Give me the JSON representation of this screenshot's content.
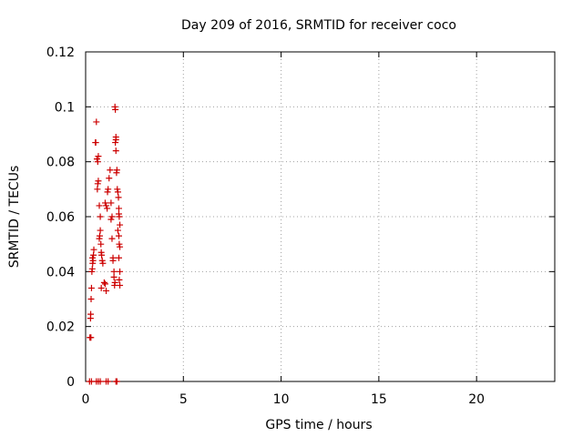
{
  "chart_data": {
    "type": "scatter",
    "title": "Day 209 of 2016, SRMTID for receiver coco",
    "xlabel": "GPS time / hours",
    "ylabel": "SRMTID / TECUs",
    "xlim": [
      0,
      24
    ],
    "ylim": [
      0,
      0.12
    ],
    "xticks": [
      0,
      5,
      10,
      15,
      20
    ],
    "yticks": [
      0,
      0.02,
      0.04,
      0.06,
      0.08,
      0.1,
      0.12
    ],
    "xtick_labels": [
      "0",
      "5",
      "10",
      "15",
      "20"
    ],
    "ytick_labels": [
      "0",
      "0.02",
      "0.04",
      "0.06",
      "0.08",
      "0.1",
      "0.12"
    ],
    "grid": true,
    "marker": "+",
    "marker_color": "#cc0000",
    "series": [
      {
        "name": "SRMTID",
        "points": [
          [
            0.2,
            0.0
          ],
          [
            0.3,
            0.0
          ],
          [
            0.55,
            0.0
          ],
          [
            0.65,
            0.0
          ],
          [
            0.75,
            0.0
          ],
          [
            1.05,
            0.0
          ],
          [
            1.15,
            0.0
          ],
          [
            1.55,
            0.0
          ],
          [
            1.6,
            0.0
          ],
          [
            0.22,
            0.016
          ],
          [
            0.27,
            0.016
          ],
          [
            0.25,
            0.023
          ],
          [
            0.26,
            0.0245
          ],
          [
            0.28,
            0.03
          ],
          [
            0.3,
            0.034
          ],
          [
            0.32,
            0.04
          ],
          [
            0.34,
            0.041
          ],
          [
            0.36,
            0.043
          ],
          [
            0.38,
            0.044
          ],
          [
            0.35,
            0.045
          ],
          [
            0.4,
            0.046
          ],
          [
            0.42,
            0.048
          ],
          [
            0.5,
            0.087
          ],
          [
            0.52,
            0.087
          ],
          [
            0.55,
            0.0945
          ],
          [
            0.58,
            0.081
          ],
          [
            0.62,
            0.08
          ],
          [
            0.65,
            0.082
          ],
          [
            0.6,
            0.07
          ],
          [
            0.62,
            0.072
          ],
          [
            0.65,
            0.073
          ],
          [
            0.7,
            0.064
          ],
          [
            0.75,
            0.06
          ],
          [
            0.7,
            0.052
          ],
          [
            0.72,
            0.053
          ],
          [
            0.75,
            0.055
          ],
          [
            0.78,
            0.05
          ],
          [
            0.8,
            0.047
          ],
          [
            0.82,
            0.046
          ],
          [
            0.85,
            0.044
          ],
          [
            0.88,
            0.043
          ],
          [
            0.8,
            0.034
          ],
          [
            0.95,
            0.036
          ],
          [
            1.0,
            0.0355
          ],
          [
            1.05,
            0.033
          ],
          [
            1.0,
            0.065
          ],
          [
            1.05,
            0.064
          ],
          [
            1.1,
            0.063
          ],
          [
            1.12,
            0.069
          ],
          [
            1.15,
            0.07
          ],
          [
            1.2,
            0.074
          ],
          [
            1.25,
            0.077
          ],
          [
            1.3,
            0.065
          ],
          [
            1.3,
            0.059
          ],
          [
            1.35,
            0.06
          ],
          [
            1.35,
            0.052
          ],
          [
            1.4,
            0.045
          ],
          [
            1.4,
            0.044
          ],
          [
            1.45,
            0.04
          ],
          [
            1.45,
            0.038
          ],
          [
            1.5,
            0.036
          ],
          [
            1.48,
            0.035
          ],
          [
            1.5,
            0.1
          ],
          [
            1.52,
            0.099
          ],
          [
            1.55,
            0.089
          ],
          [
            1.55,
            0.088
          ],
          [
            1.52,
            0.087
          ],
          [
            1.55,
            0.084
          ],
          [
            1.58,
            0.076
          ],
          [
            1.6,
            0.077
          ],
          [
            1.62,
            0.07
          ],
          [
            1.65,
            0.069
          ],
          [
            1.68,
            0.067
          ],
          [
            1.7,
            0.063
          ],
          [
            1.7,
            0.061
          ],
          [
            1.72,
            0.06
          ],
          [
            1.75,
            0.057
          ],
          [
            1.65,
            0.055
          ],
          [
            1.7,
            0.053
          ],
          [
            1.72,
            0.05
          ],
          [
            1.75,
            0.049
          ],
          [
            1.7,
            0.045
          ],
          [
            1.75,
            0.04
          ],
          [
            1.72,
            0.037
          ],
          [
            1.75,
            0.035
          ]
        ]
      }
    ]
  }
}
